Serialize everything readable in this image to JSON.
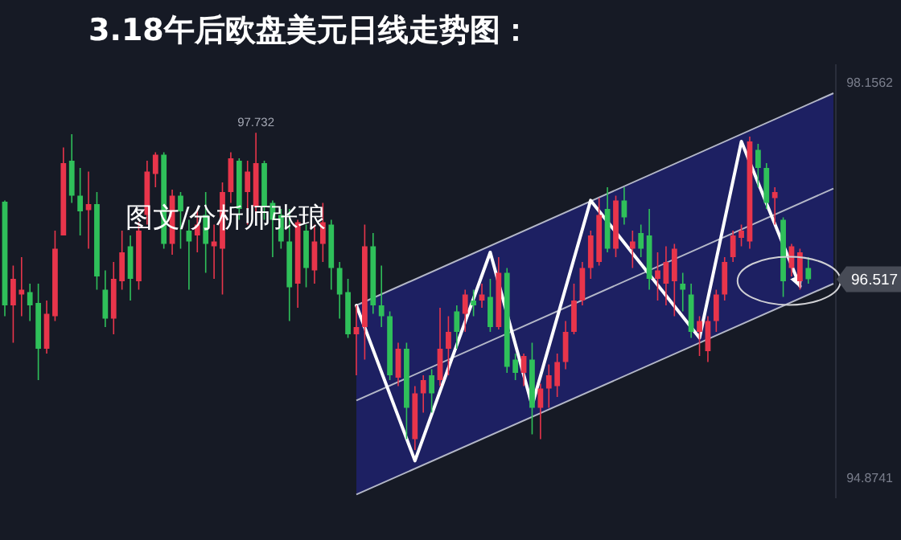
{
  "chart_data": {
    "type": "candlestick",
    "title": "3.18午后欧盘美元日线走势图：",
    "categories": [
      null,
      null,
      null,
      null,
      null,
      null,
      null,
      null,
      null,
      null,
      null,
      null,
      null,
      null,
      null,
      null,
      null,
      null,
      null,
      null,
      null,
      null,
      null,
      null,
      null,
      null,
      null,
      null,
      null,
      null,
      null,
      null,
      null,
      null,
      null,
      null,
      null,
      null,
      null,
      null,
      null,
      null,
      null,
      null,
      null,
      null,
      null,
      null,
      null,
      null,
      null,
      null,
      null,
      null,
      null,
      null,
      null,
      null,
      null,
      null,
      null,
      null,
      null,
      null,
      null,
      null,
      null,
      null,
      null,
      null,
      null,
      null,
      null,
      null,
      null,
      null,
      null,
      null,
      null,
      null,
      null,
      null,
      null,
      null,
      null,
      null,
      null,
      null,
      null,
      null,
      null,
      null,
      null,
      null,
      null,
      null,
      null,
      null,
      null,
      null
    ],
    "ohlc": [
      [
        97.16,
        97.17,
        96.21,
        96.3
      ],
      [
        96.3,
        96.63,
        95.99,
        96.52
      ],
      [
        96.39,
        96.7,
        96.21,
        96.43
      ],
      [
        96.41,
        96.48,
        96.17,
        96.3
      ],
      [
        96.32,
        96.48,
        95.68,
        95.94
      ],
      [
        95.94,
        96.34,
        95.9,
        96.23
      ],
      [
        96.21,
        96.92,
        96.17,
        96.77
      ],
      [
        96.88,
        97.61,
        96.88,
        97.48
      ],
      [
        97.5,
        97.72,
        97.15,
        97.21
      ],
      [
        97.21,
        97.44,
        96.88,
        97.08
      ],
      [
        97.09,
        97.41,
        96.77,
        97.14
      ],
      [
        97.14,
        97.24,
        96.43,
        96.54
      ],
      [
        96.43,
        96.59,
        96.12,
        96.19
      ],
      [
        96.19,
        96.66,
        96.06,
        96.52
      ],
      [
        96.5,
        96.92,
        96.43,
        96.74
      ],
      [
        96.79,
        96.88,
        96.34,
        96.52
      ],
      [
        96.5,
        96.99,
        96.43,
        96.92
      ],
      [
        97.05,
        97.5,
        96.97,
        97.41
      ],
      [
        97.39,
        97.57,
        97.28,
        97.55
      ],
      [
        97.55,
        97.57,
        96.77,
        96.81
      ],
      [
        96.81,
        97.26,
        96.72,
        97.21
      ],
      [
        97.21,
        97.24,
        96.77,
        97.08
      ],
      [
        96.92,
        97.01,
        96.43,
        96.83
      ],
      [
        96.88,
        97.1,
        96.74,
        96.97
      ],
      [
        97.05,
        97.24,
        96.57,
        96.81
      ],
      [
        96.79,
        96.97,
        96.52,
        96.83
      ],
      [
        96.77,
        97.32,
        96.39,
        97.24
      ],
      [
        97.24,
        97.57,
        97.15,
        97.52
      ],
      [
        97.5,
        97.52,
        97.01,
        97.1
      ],
      [
        97.24,
        97.5,
        96.97,
        97.41
      ],
      [
        97.12,
        97.732,
        97.05,
        97.48
      ],
      [
        97.48,
        97.5,
        97.01,
        97.12
      ],
      [
        97.15,
        97.17,
        96.7,
        97.01
      ],
      [
        97.05,
        97.1,
        96.77,
        96.83
      ],
      [
        96.83,
        97.1,
        96.17,
        96.45
      ],
      [
        96.48,
        97.01,
        96.28,
        96.99
      ],
      [
        96.92,
        96.97,
        96.45,
        96.61
      ],
      [
        96.59,
        96.97,
        96.48,
        96.83
      ],
      [
        96.81,
        97.15,
        96.66,
        96.99
      ],
      [
        96.97,
        97.01,
        96.43,
        96.61
      ],
      [
        96.61,
        96.66,
        96.19,
        96.39
      ],
      [
        96.41,
        96.52,
        96.03,
        96.06
      ],
      [
        96.06,
        96.3,
        95.72,
        96.12
      ],
      [
        96.12,
        96.97,
        95.85,
        96.79
      ],
      [
        96.79,
        96.9,
        96.23,
        96.3
      ],
      [
        96.3,
        96.63,
        96.12,
        96.21
      ],
      [
        96.21,
        96.25,
        95.68,
        95.72
      ],
      [
        95.7,
        95.99,
        95.63,
        95.94
      ],
      [
        95.94,
        95.99,
        95.19,
        95.45
      ],
      [
        95.19,
        95.63,
        95.1,
        95.57
      ],
      [
        95.57,
        95.72,
        95.41,
        95.68
      ],
      [
        95.72,
        95.77,
        95.41,
        95.57
      ],
      [
        95.68,
        96.28,
        95.63,
        95.94
      ],
      [
        95.94,
        96.21,
        95.72,
        96.08
      ],
      [
        96.25,
        96.3,
        95.94,
        96.08
      ],
      [
        96.23,
        96.43,
        96.08,
        96.39
      ],
      [
        96.34,
        96.43,
        96.21,
        96.3
      ],
      [
        96.34,
        96.48,
        96.28,
        96.39
      ],
      [
        96.37,
        96.52,
        96.08,
        96.12
      ],
      [
        96.12,
        96.7,
        96.1,
        96.57
      ],
      [
        96.57,
        96.61,
        95.74,
        95.79
      ],
      [
        95.85,
        95.9,
        95.68,
        95.74
      ],
      [
        95.74,
        95.9,
        95.63,
        95.88
      ],
      [
        95.85,
        95.99,
        95.23,
        95.45
      ],
      [
        95.45,
        95.65,
        95.19,
        95.61
      ],
      [
        95.61,
        95.81,
        95.45,
        95.72
      ],
      [
        95.63,
        95.9,
        95.54,
        95.83
      ],
      [
        95.83,
        96.17,
        95.77,
        96.08
      ],
      [
        96.08,
        96.48,
        96.06,
        96.34
      ],
      [
        96.34,
        96.66,
        96.3,
        96.61
      ],
      [
        96.61,
        96.92,
        96.52,
        96.88
      ],
      [
        96.66,
        97.19,
        96.63,
        97.05
      ],
      [
        97.1,
        97.28,
        96.74,
        96.77
      ],
      [
        96.77,
        97.21,
        96.7,
        97.17
      ],
      [
        97.17,
        97.28,
        96.97,
        97.03
      ],
      [
        96.77,
        96.92,
        96.61,
        96.83
      ],
      [
        96.9,
        96.97,
        96.7,
        96.77
      ],
      [
        96.88,
        97.1,
        96.43,
        96.52
      ],
      [
        96.52,
        96.74,
        96.34,
        96.59
      ],
      [
        96.48,
        96.79,
        96.3,
        96.66
      ],
      [
        96.5,
        96.81,
        96.21,
        96.77
      ],
      [
        96.48,
        96.57,
        96.25,
        96.43
      ],
      [
        96.39,
        96.48,
        96.03,
        96.08
      ],
      [
        96.08,
        96.21,
        95.88,
        96.17
      ],
      [
        95.92,
        96.21,
        95.83,
        96.17
      ],
      [
        96.17,
        96.43,
        96.08,
        96.39
      ],
      [
        96.39,
        96.7,
        96.34,
        96.66
      ],
      [
        96.7,
        96.92,
        96.66,
        96.88
      ],
      [
        96.86,
        96.97,
        96.79,
        96.92
      ],
      [
        96.83,
        97.7,
        96.77,
        97.66
      ],
      [
        97.59,
        97.64,
        97.28,
        97.44
      ],
      [
        97.44,
        97.48,
        97.1,
        97.15
      ],
      [
        97.19,
        97.28,
        96.97,
        97.24
      ],
      [
        97.01,
        97.03,
        96.37,
        96.5
      ],
      [
        96.61,
        96.81,
        96.54,
        96.79
      ],
      [
        96.5,
        96.77,
        96.43,
        96.74
      ],
      [
        96.61,
        96.7,
        96.48,
        96.517
      ],
      null,
      null,
      null
    ],
    "colors": [
      "#2fc05a",
      "#e8354b",
      "#e8354b",
      "#2fc05a",
      "#2fc05a",
      "#e8354b",
      "#e8354b",
      "#e8354b",
      "#2fc05a",
      "#2fc05a",
      "#e8354b",
      "#2fc05a",
      "#2fc05a",
      "#e8354b",
      "#e8354b",
      "#2fc05a",
      "#e8354b",
      "#e8354b",
      "#e8354b",
      "#2fc05a",
      "#e8354b",
      "#2fc05a",
      "#2fc05a",
      "#e8354b",
      "#2fc05a",
      "#e8354b",
      "#e8354b",
      "#e8354b",
      "#2fc05a",
      "#e8354b",
      "#e8354b",
      "#2fc05a",
      "#2fc05a",
      "#2fc05a",
      "#2fc05a",
      "#e8354b",
      "#2fc05a",
      "#e8354b",
      "#e8354b",
      "#2fc05a",
      "#2fc05a",
      "#2fc05a",
      "#e8354b",
      "#e8354b",
      "#2fc05a",
      "#2fc05a",
      "#2fc05a",
      "#e8354b",
      "#2fc05a",
      "#e8354b",
      "#e8354b",
      "#2fc05a",
      "#e8354b",
      "#e8354b",
      "#2fc05a",
      "#e8354b",
      "#2fc05a",
      "#e8354b",
      "#2fc05a",
      "#e8354b",
      "#2fc05a",
      "#2fc05a",
      "#e8354b",
      "#2fc05a",
      "#e8354b",
      "#e8354b",
      "#e8354b",
      "#e8354b",
      "#e8354b",
      "#e8354b",
      "#e8354b",
      "#e8354b",
      "#2fc05a",
      "#e8354b",
      "#2fc05a",
      "#e8354b",
      "#2fc05a",
      "#2fc05a",
      "#e8354b",
      "#e8354b",
      "#e8354b",
      "#2fc05a",
      "#2fc05a",
      "#e8354b",
      "#e8354b",
      "#e8354b",
      "#e8354b",
      "#e8354b",
      "#e8354b",
      "#e8354b",
      "#2fc05a",
      "#2fc05a",
      "#e8354b",
      "#2fc05a",
      "#e8354b",
      "#e8354b",
      "#2fc05a",
      null,
      null,
      null
    ],
    "series": [
      {
        "type": "line",
        "color": "#b4b8c8",
        "values": [
          null,
          null,
          null,
          null,
          null,
          null,
          null,
          null,
          null,
          null,
          null,
          null,
          null,
          null,
          null,
          null,
          null,
          null,
          null,
          null,
          null,
          null,
          null,
          null,
          null,
          null,
          null,
          null,
          null,
          null,
          null,
          null,
          null,
          null,
          null,
          null,
          null,
          null,
          null,
          null,
          null,
          null,
          95.51,
          null,
          null,
          null,
          null,
          null,
          null,
          null,
          null,
          null,
          null,
          null,
          null,
          null,
          null,
          null,
          null,
          null,
          null,
          null,
          null,
          null,
          null,
          null,
          null,
          null,
          null,
          null,
          null,
          null,
          null,
          null,
          null,
          null,
          null,
          null,
          null,
          null,
          null,
          null,
          null,
          null,
          null,
          null,
          null,
          null,
          null,
          null,
          null,
          null,
          null,
          null,
          null,
          null,
          null,
          null,
          null,
          97.27
        ],
        "lower": [
          null,
          null,
          null,
          null,
          null,
          null,
          null,
          null,
          null,
          null,
          null,
          null,
          null,
          null,
          null,
          null,
          null,
          null,
          null,
          null,
          null,
          null,
          null,
          null,
          null,
          null,
          null,
          null,
          null,
          null,
          null,
          null,
          null,
          null,
          null,
          null,
          null,
          null,
          null,
          null,
          null,
          null,
          94.73,
          null,
          null,
          null,
          null,
          null,
          null,
          null,
          null,
          null,
          null,
          null,
          null,
          null,
          null,
          null,
          null,
          null,
          null,
          null,
          null,
          null,
          null,
          null,
          null,
          null,
          null,
          null,
          null,
          null,
          null,
          null,
          null,
          null,
          null,
          null,
          null,
          null,
          null,
          null,
          null,
          null,
          null,
          null,
          null,
          null,
          null,
          null,
          null,
          null,
          null,
          null,
          null,
          null,
          null,
          null,
          null,
          96.48
        ],
        "upper": [
          null,
          null,
          null,
          null,
          null,
          null,
          null,
          null,
          null,
          null,
          null,
          null,
          null,
          null,
          null,
          null,
          null,
          null,
          null,
          null,
          null,
          null,
          null,
          null,
          null,
          null,
          null,
          null,
          null,
          null,
          null,
          null,
          null,
          null,
          null,
          null,
          null,
          null,
          null,
          null,
          null,
          null,
          96.3,
          null,
          null,
          null,
          null,
          null,
          null,
          null,
          null,
          null,
          null,
          null,
          null,
          null,
          null,
          null,
          null,
          null,
          null,
          null,
          null,
          null,
          null,
          null,
          null,
          null,
          null,
          null,
          null,
          null,
          null,
          null,
          null,
          null,
          null,
          null,
          null,
          null,
          null,
          null,
          null,
          null,
          null,
          null,
          null,
          null,
          null,
          null,
          null,
          null,
          null,
          null,
          null,
          null,
          null,
          null,
          null,
          98.06
        ]
      },
      {
        "type": "line",
        "color": "#b4b8c8",
        "values": [
          null,
          null,
          null,
          null,
          null,
          null,
          null,
          null,
          null,
          null,
          null,
          null,
          null,
          null,
          null,
          null,
          null,
          null,
          null,
          null,
          null,
          null,
          null,
          null,
          null,
          null,
          null,
          null,
          null,
          null,
          null,
          null,
          null,
          null,
          null,
          null,
          null,
          null,
          null,
          null,
          null,
          null,
          96.3,
          null,
          null,
          null,
          null,
          null,
          null,
          null,
          null,
          null,
          null,
          null,
          null,
          null,
          null,
          null,
          null,
          null,
          null,
          null,
          null,
          null,
          null,
          null,
          null,
          null,
          null,
          null,
          null,
          null,
          null,
          null,
          null,
          null,
          null,
          null,
          null,
          null,
          null,
          null,
          null,
          null,
          null,
          null,
          null,
          null,
          null,
          null,
          null,
          null,
          null,
          null,
          null,
          null,
          null,
          null,
          null,
          98.06
        ]
      },
      {
        "type": "line",
        "color": "#b4b8c8",
        "values": [
          null,
          null,
          null,
          null,
          null,
          null,
          null,
          null,
          null,
          null,
          null,
          null,
          null,
          null,
          null,
          null,
          null,
          null,
          null,
          null,
          null,
          null,
          null,
          null,
          null,
          null,
          null,
          null,
          null,
          null,
          null,
          null,
          null,
          null,
          null,
          null,
          null,
          null,
          null,
          null,
          null,
          null,
          94.73,
          null,
          null,
          null,
          null,
          null,
          null,
          null,
          null,
          null,
          null,
          null,
          null,
          null,
          null,
          null,
          null,
          null,
          null,
          null,
          null,
          null,
          null,
          null,
          null,
          null,
          null,
          null,
          null,
          null,
          null,
          null,
          null,
          null,
          null,
          null,
          null,
          null,
          null,
          null,
          null,
          null,
          null,
          null,
          null,
          null,
          null,
          null,
          null,
          null,
          null,
          null,
          null,
          null,
          null,
          null,
          null,
          96.48
        ]
      },
      {
        "type": "line",
        "color": "#ffffff",
        "values": [
          null,
          null,
          null,
          null,
          null,
          null,
          null,
          null,
          null,
          null,
          null,
          null,
          null,
          null,
          null,
          null,
          null,
          null,
          null,
          null,
          null,
          null,
          null,
          null,
          null,
          null,
          null,
          null,
          null,
          null,
          null,
          null,
          null,
          null,
          null,
          null,
          null,
          null,
          null,
          null,
          null,
          null,
          96.3,
          null,
          null,
          null,
          null,
          null,
          null,
          95.01,
          null,
          null,
          null,
          null,
          null,
          null,
          null,
          null,
          96.74,
          null,
          null,
          null,
          null,
          95.47,
          null,
          null,
          null,
          null,
          null,
          null,
          97.17,
          null,
          null,
          null,
          null,
          null,
          null,
          null,
          null,
          null,
          null,
          null,
          null,
          96.03,
          null,
          null,
          null,
          null,
          97.66,
          null,
          null,
          null,
          null,
          null,
          null,
          96.46,
          null,
          null,
          null,
          null
        ]
      }
    ],
    "ylim": [
      94.7,
      98.3
    ],
    "yticks": [
      98.1562,
      94.8741
    ],
    "tick_labels": "y",
    "annotations": [
      "图文/分析师张琅",
      {
        "text": "97.732",
        "y": 97.732
      },
      "96.517"
    ]
  }
}
